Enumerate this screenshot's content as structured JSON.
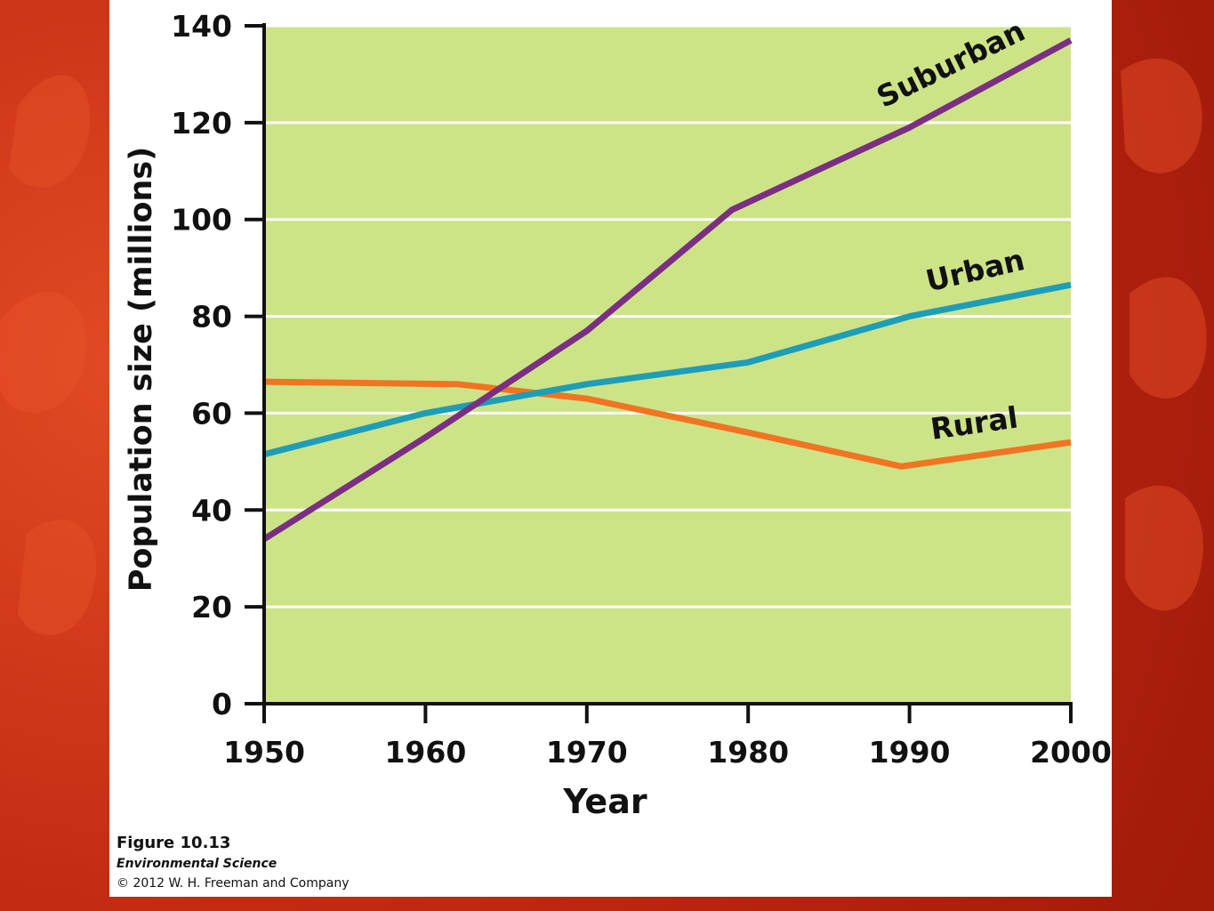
{
  "slide": {
    "background_color": "#c42a12",
    "panel_color": "#ffffff"
  },
  "caption": {
    "figure_number": "Figure 10.13",
    "book_title": "Environmental Science",
    "copyright": "© 2012 W. H. Freeman and Company"
  },
  "chart_data": {
    "type": "line",
    "title": "",
    "xlabel": "Year",
    "ylabel": "Population size (millions)",
    "xlim": [
      1950,
      2000
    ],
    "ylim": [
      0,
      140
    ],
    "x_ticks": [
      1950,
      1960,
      1970,
      1980,
      1990,
      2000
    ],
    "y_ticks": [
      0,
      20,
      40,
      60,
      80,
      100,
      120,
      140
    ],
    "grid": "horizontal",
    "plot_background": "#cde387",
    "grid_color": "#ffffff",
    "series": [
      {
        "name": "Rural",
        "color": "#f07422",
        "points": [
          [
            1950,
            66.5
          ],
          [
            1962,
            66
          ],
          [
            1970,
            63
          ],
          [
            1980,
            56
          ],
          [
            1989.5,
            49
          ],
          [
            2000,
            54
          ]
        ]
      },
      {
        "name": "Urban",
        "color": "#1e9db8",
        "points": [
          [
            1950,
            51.5
          ],
          [
            1960,
            60
          ],
          [
            1970,
            66
          ],
          [
            1980,
            70.5
          ],
          [
            1990,
            80
          ],
          [
            2000,
            86.5
          ]
        ]
      },
      {
        "name": "Suburban",
        "color": "#7b2f82",
        "points": [
          [
            1950,
            34
          ],
          [
            1960,
            55
          ],
          [
            1970,
            77
          ],
          [
            1979,
            102
          ],
          [
            1990,
            119
          ],
          [
            2000,
            137
          ]
        ]
      }
    ]
  }
}
